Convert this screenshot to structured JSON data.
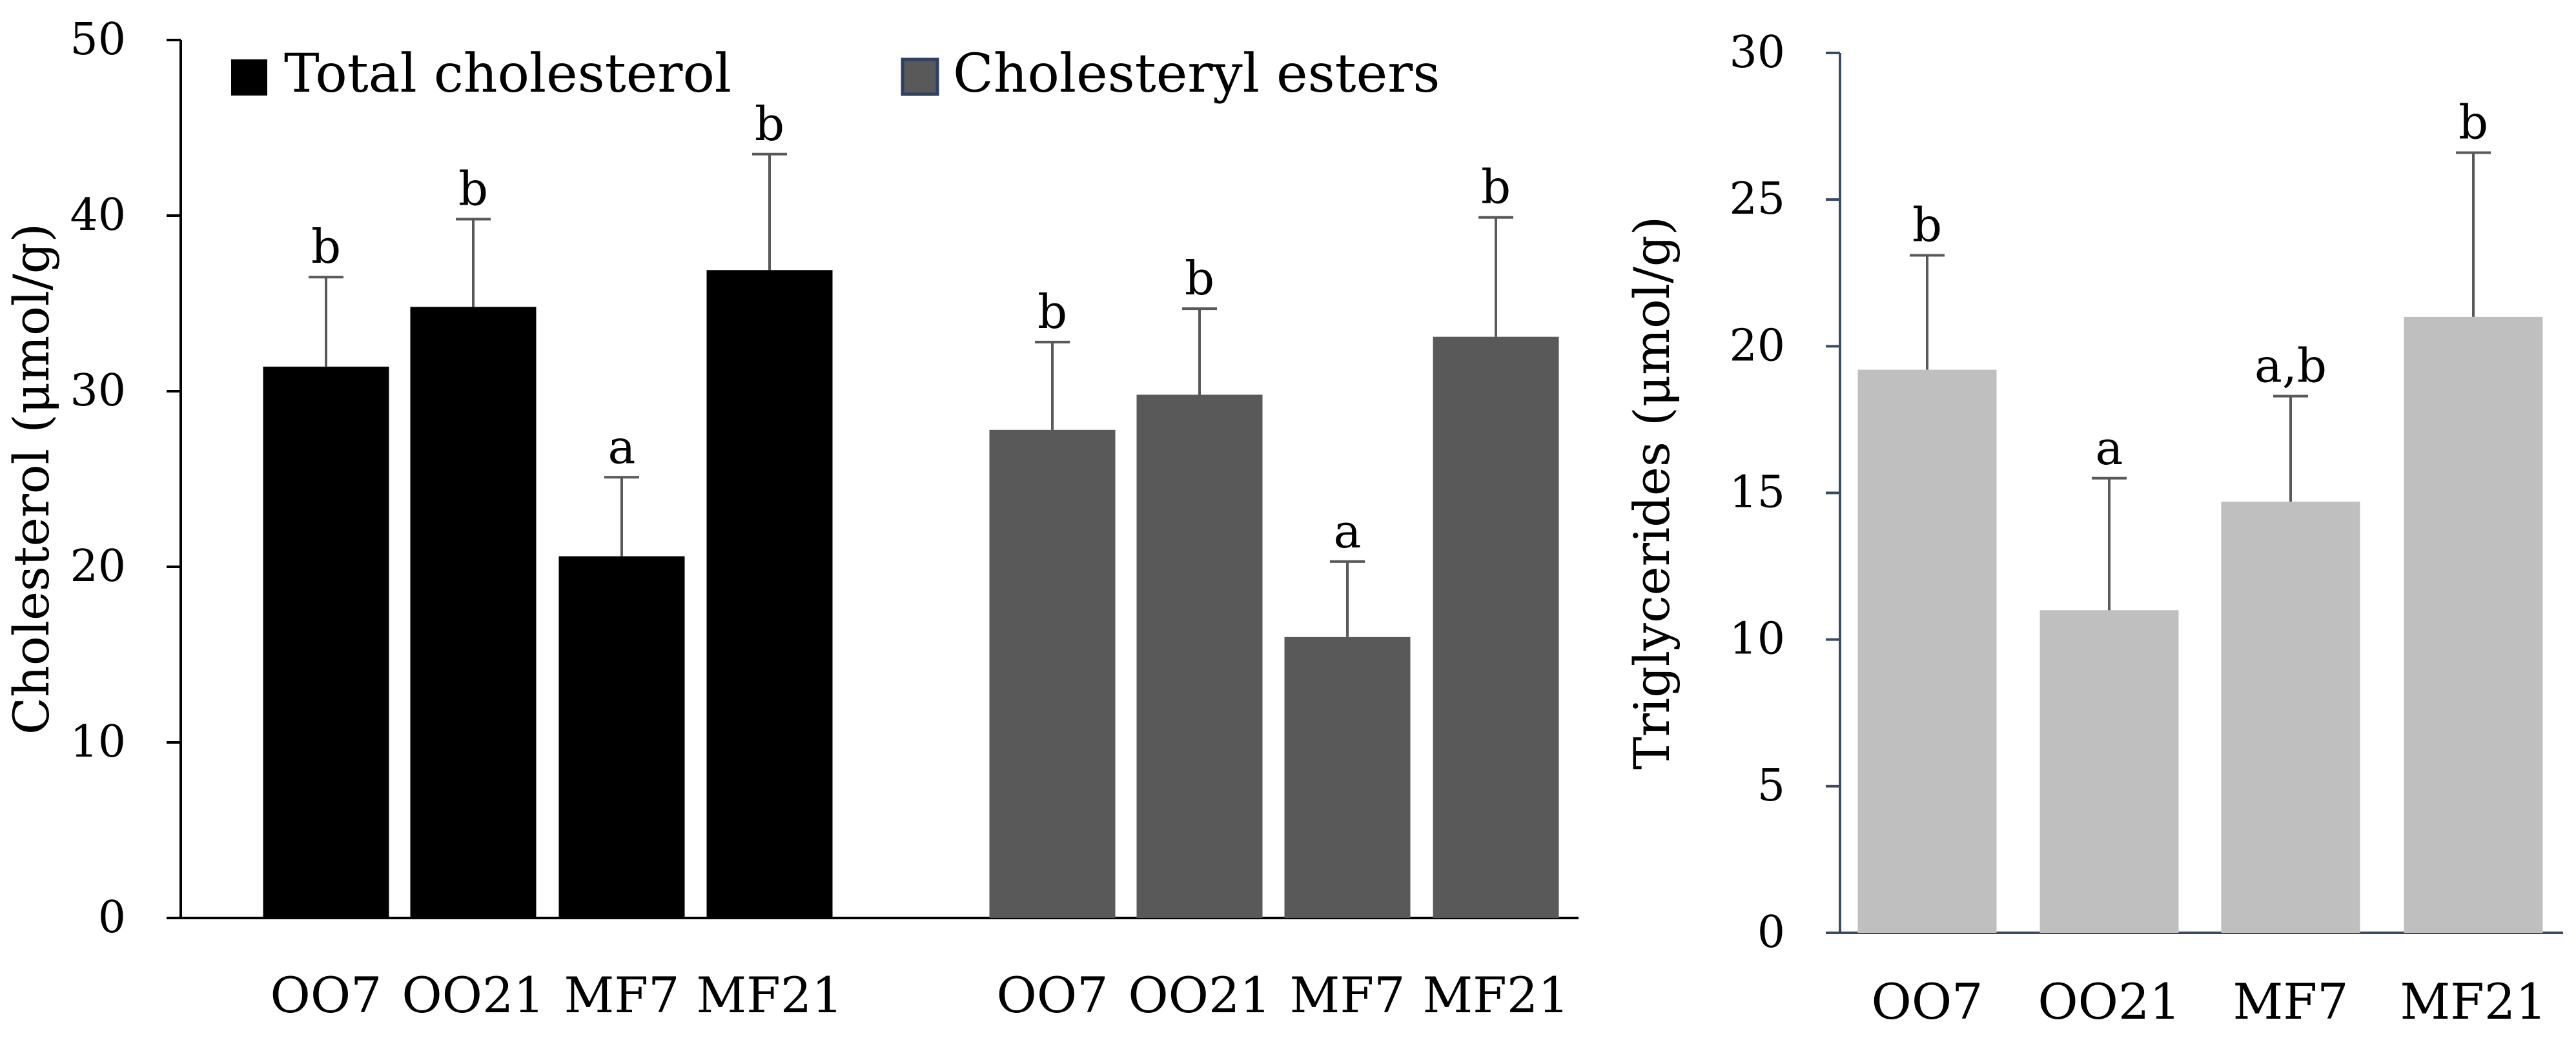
{
  "colors": {
    "total_cholesterol": "#000000",
    "cholesteryl_esters": "#595959",
    "triglycerides": "#bfbfbf",
    "axis_left": "#000000",
    "axis_right": "#3a4a66",
    "error_bar": "#595959"
  },
  "chart_data": [
    {
      "type": "bar",
      "ylabel": "Cholesterol (μmol/g)",
      "ylim": [
        0,
        50
      ],
      "yticks": [
        0,
        10,
        20,
        30,
        40,
        50
      ],
      "legend_position": "top",
      "categories": [
        "OO7",
        "OO21",
        "MF7",
        "MF21"
      ],
      "series": [
        {
          "name": "Total cholesterol",
          "values": [
            31.4,
            34.8,
            20.6,
            36.9
          ],
          "errors": [
            5.1,
            5.0,
            4.5,
            6.6
          ],
          "significance": [
            "b",
            "b",
            "a",
            "b"
          ]
        },
        {
          "name": "Cholesteryl esters",
          "values": [
            27.8,
            29.8,
            16.0,
            33.1
          ],
          "errors": [
            5.0,
            4.9,
            4.3,
            6.8
          ],
          "significance": [
            "b",
            "b",
            "a",
            "b"
          ]
        }
      ]
    },
    {
      "type": "bar",
      "ylabel": "Triglycerides (μmol/g)",
      "ylim": [
        0,
        30
      ],
      "yticks": [
        0,
        5,
        10,
        15,
        20,
        25,
        30
      ],
      "categories": [
        "OO7",
        "OO21",
        "MF7",
        "MF21"
      ],
      "series": [
        {
          "values": [
            19.2,
            11.0,
            14.7,
            21.0
          ],
          "errors": [
            3.9,
            4.5,
            3.6,
            5.6
          ],
          "significance": [
            "b",
            "a",
            "a,b",
            "b"
          ]
        }
      ]
    }
  ]
}
